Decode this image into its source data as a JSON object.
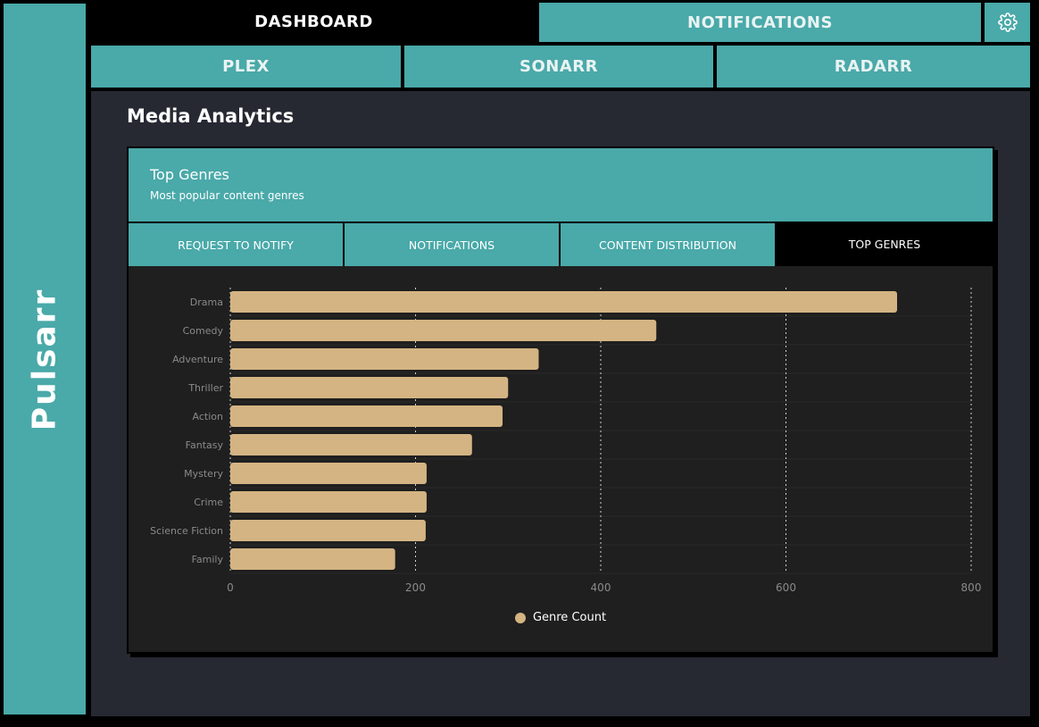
{
  "app": {
    "title": "Pulsarr"
  },
  "nav": {
    "dashboard": "DASHBOARD",
    "notifications": "NOTIFICATIONS",
    "plex": "PLEX",
    "sonarr": "SONARR",
    "radarr": "RADARR",
    "settings_icon": "gear-icon"
  },
  "page": {
    "title": "Media Analytics"
  },
  "card": {
    "title": "Top Genres",
    "subtitle": "Most popular content genres",
    "tabs": [
      "REQUEST TO NOTIFY",
      "NOTIFICATIONS",
      "CONTENT DISTRIBUTION",
      "TOP GENRES"
    ],
    "active_tab": "TOP GENRES"
  },
  "colors": {
    "accent": "#4aa9a9",
    "bar": "#d4b483",
    "background": "#262932",
    "card": "#1f1f1f"
  },
  "chart_data": {
    "type": "bar",
    "orientation": "horizontal",
    "categories": [
      "Drama",
      "Comedy",
      "Adventure",
      "Thriller",
      "Action",
      "Fantasy",
      "Mystery",
      "Crime",
      "Science Fiction",
      "Family"
    ],
    "series": [
      {
        "name": "Genre Count",
        "values": [
          720,
          460,
          333,
          300,
          294,
          261,
          212,
          212,
          211,
          178
        ]
      }
    ],
    "xlim": [
      0,
      800
    ],
    "xticks": [
      0,
      200,
      400,
      600,
      800
    ],
    "grid": true,
    "legend": "bottom-center"
  }
}
